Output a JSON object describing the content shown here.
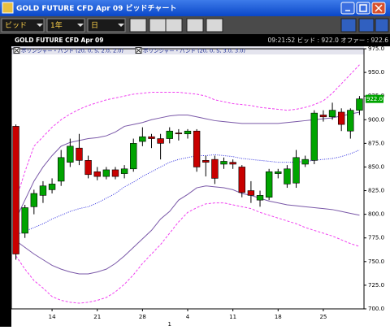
{
  "window": {
    "title": "GOLD FUTURE CFD Apr 09 ビッドチャート"
  },
  "toolbar": {
    "price_type": "ビッド",
    "period": "1年",
    "interval": "日"
  },
  "header": {
    "instrument": "GOLD FUTURE CFD Apr 09",
    "quote": "09:21:52  ビッド : 922.0  オファー : 922.6"
  },
  "chart_data": {
    "type": "candlestick",
    "categories": [
      null,
      null,
      null,
      null,
      "14",
      null,
      null,
      null,
      null,
      "21",
      null,
      null,
      null,
      null,
      "28",
      null,
      null,
      null,
      null,
      "4",
      null,
      null,
      null,
      null,
      "11",
      null,
      null,
      null,
      null,
      "18",
      null,
      null,
      null,
      null,
      "25",
      null,
      null,
      null,
      null
    ],
    "month_label": "1",
    "up_color": "#00a400",
    "down_color": "#c80000",
    "series": [
      {
        "open": [
          893,
          780,
          808,
          820,
          826,
          835,
          855,
          870,
          857,
          845,
          840,
          847,
          843,
          848,
          877,
          882,
          880,
          880,
          886,
          885,
          888,
          857,
          858,
          853,
          855,
          850,
          825,
          815,
          818,
          843,
          832,
          833,
          853,
          857,
          905,
          903,
          908,
          888,
          910
        ],
        "high": [
          895,
          810,
          826,
          835,
          838,
          868,
          880,
          885,
          862,
          850,
          850,
          850,
          852,
          880,
          892,
          885,
          885,
          892,
          890,
          890,
          890,
          862,
          862,
          860,
          858,
          852,
          835,
          825,
          848,
          848,
          852,
          868,
          862,
          910,
          910,
          918,
          912,
          912,
          925
        ],
        "low": [
          752,
          775,
          800,
          812,
          822,
          830,
          850,
          852,
          838,
          836,
          837,
          837,
          838,
          845,
          872,
          870,
          858,
          875,
          878,
          880,
          845,
          840,
          832,
          848,
          848,
          818,
          812,
          808,
          815,
          838,
          828,
          828,
          850,
          853,
          898,
          900,
          888,
          880,
          905
        ],
        "close": [
          758,
          807,
          822,
          830,
          832,
          860,
          872,
          857,
          842,
          840,
          847,
          840,
          848,
          875,
          882,
          880,
          875,
          888,
          885,
          888,
          850,
          855,
          838,
          856,
          853,
          823,
          820,
          820,
          845,
          845,
          848,
          860,
          858,
          907,
          903,
          910,
          895,
          910,
          922
        ]
      }
    ],
    "indicators": [
      {
        "name": "ボリンジャー・バンド (20, 0, S, 2.0, 2.0)",
        "color": "#7a58a8",
        "middle_color": "#3030e0",
        "upper": [
          795,
          815,
          835,
          850,
          862,
          872,
          876,
          878,
          880,
          881,
          883,
          887,
          893,
          895,
          897,
          900,
          902,
          904,
          905,
          905,
          903,
          901,
          899,
          898,
          897,
          896,
          896,
          896,
          896,
          896,
          897,
          898,
          899,
          900,
          901,
          902,
          904,
          906,
          908
        ],
        "middle": [
          778,
          782,
          786,
          790,
          795,
          799,
          803,
          806,
          808,
          812,
          817,
          822,
          829,
          834,
          840,
          845,
          850,
          855,
          858,
          860,
          862,
          862,
          863,
          862,
          861,
          859,
          858,
          857,
          856,
          855,
          855,
          855,
          856,
          857,
          858,
          859,
          861,
          864,
          868
        ],
        "lower": [
          772,
          765,
          758,
          752,
          746,
          742,
          739,
          737,
          737,
          739,
          742,
          748,
          756,
          765,
          774,
          783,
          795,
          803,
          815,
          821,
          828,
          830,
          829,
          828,
          826,
          822,
          820,
          817,
          814,
          812,
          810,
          809,
          808,
          807,
          806,
          805,
          803,
          801,
          799
        ]
      },
      {
        "name": "ボリンジャー・バンド (20, 0, S, 3.0, 3.0)",
        "color": "#f040f0",
        "upper": [
          815,
          845,
          872,
          882,
          892,
          900,
          906,
          911,
          915,
          918,
          921,
          923,
          925,
          927,
          928,
          929,
          929,
          929,
          929,
          928,
          927,
          925,
          921,
          919,
          917,
          916,
          915,
          913,
          912,
          911,
          910,
          911,
          913,
          916,
          920,
          928,
          938,
          948,
          958
        ],
        "lower": [
          756,
          742,
          730,
          722,
          713,
          709,
          707,
          706,
          707,
          709,
          712,
          718,
          726,
          736,
          748,
          758,
          768,
          780,
          792,
          802,
          807,
          811,
          812,
          812,
          810,
          808,
          806,
          802,
          799,
          796,
          793,
          790,
          786,
          783,
          780,
          777,
          773,
          769,
          766
        ]
      }
    ],
    "last_price": {
      "value": 922,
      "label": "922.0"
    },
    "last_price_color": "#00a400",
    "ylim": [
      700,
      975
    ],
    "yticks": [
      {
        "value": 700,
        "label": "700.0"
      },
      {
        "value": 725,
        "label": "725.0"
      },
      {
        "value": 750,
        "label": "750.0"
      },
      {
        "value": 775,
        "label": "775.0"
      },
      {
        "value": 800,
        "label": "800.0"
      },
      {
        "value": 825,
        "label": "825.0"
      },
      {
        "value": 850,
        "label": "850.0"
      },
      {
        "value": 875,
        "label": "875.0"
      },
      {
        "value": 900,
        "label": "900.0"
      },
      {
        "value": 925,
        "label": "925.0"
      },
      {
        "value": 950,
        "label": "950.0"
      },
      {
        "value": 975,
        "label": "975.0"
      }
    ]
  }
}
